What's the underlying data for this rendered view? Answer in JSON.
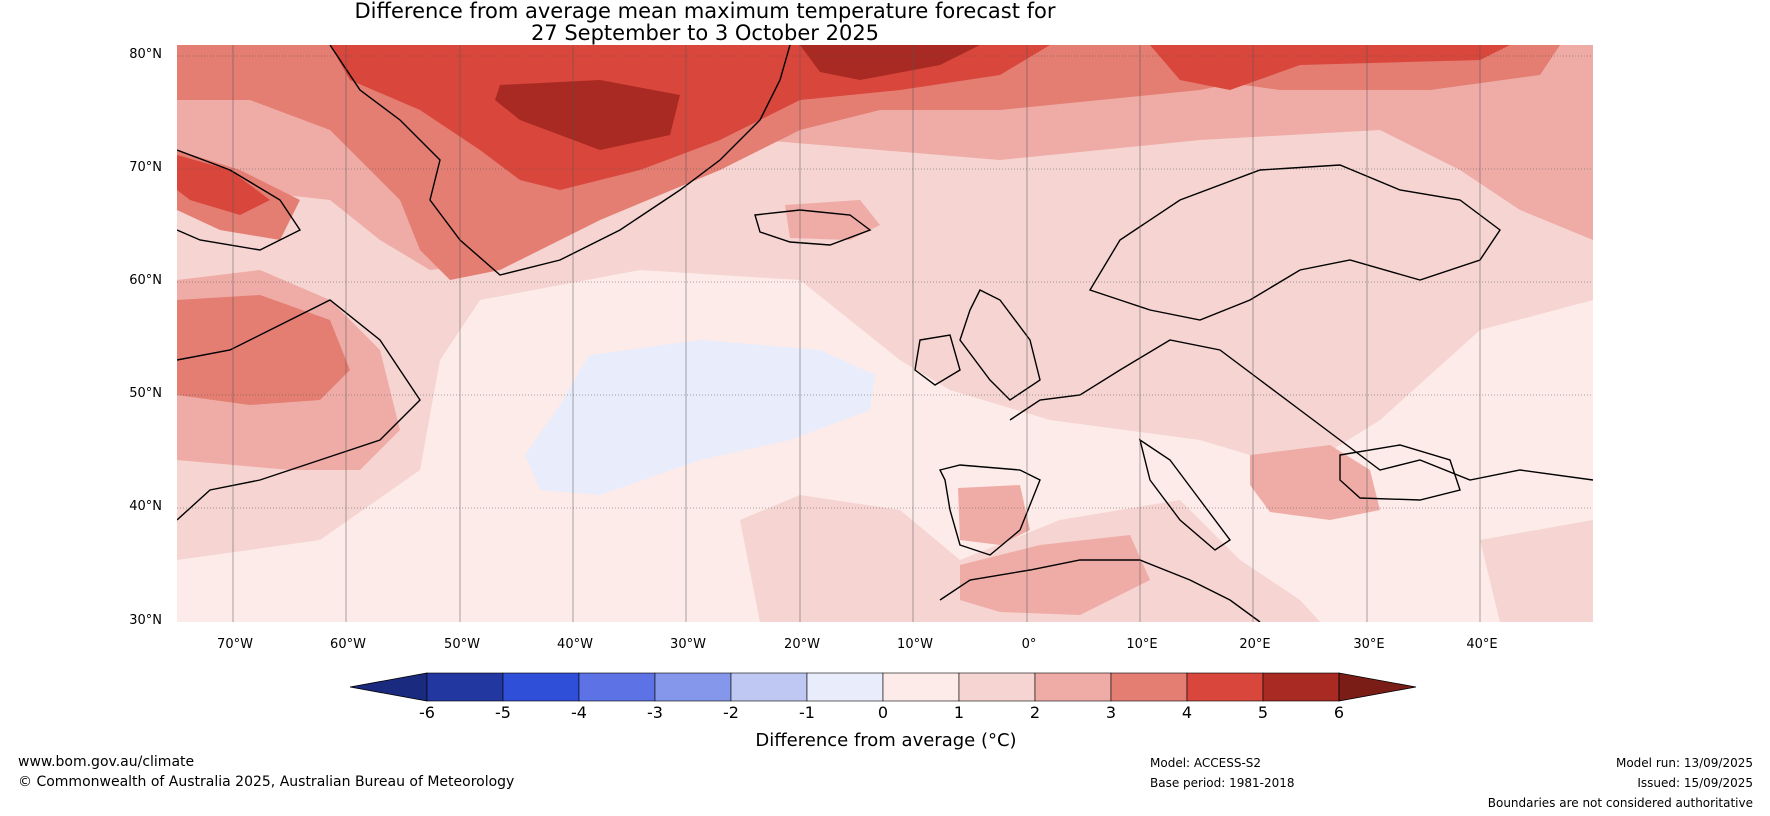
{
  "title": {
    "line1": "Difference from average mean maximum temperature forecast for",
    "line2": "27 September to 3 October 2025"
  },
  "map": {
    "projection": "equirectangular",
    "lat_labels": [
      "80°N",
      "70°N",
      "60°N",
      "50°N",
      "40°N",
      "30°N"
    ],
    "lon_labels": [
      "70°W",
      "60°W",
      "50°W",
      "40°W",
      "30°W",
      "20°W",
      "10°W",
      "0°",
      "10°E",
      "20°E",
      "30°E",
      "40°E"
    ],
    "ocean_anomaly_base": "#fcebe8",
    "regions": [
      {
        "name": "north-atlantic-cool-patch",
        "anomaly_range": [
          -1,
          0
        ],
        "color": "#e8ecfb"
      },
      {
        "name": "greenland-warm",
        "anomaly_range": [
          4,
          5
        ],
        "color": "#d9463b"
      },
      {
        "name": "greenland-peak",
        "anomaly_range": [
          5,
          6
        ],
        "color": "#a82a22"
      },
      {
        "name": "barents-warm",
        "anomaly_range": [
          4,
          5
        ],
        "color": "#d9463b"
      },
      {
        "name": "labrador-warm",
        "anomaly_range": [
          3,
          4
        ],
        "color": "#e47d72"
      },
      {
        "name": "iberia-warm",
        "anomaly_range": [
          2,
          3
        ],
        "color": "#efaca6"
      },
      {
        "name": "north-africa-warm",
        "anomaly_range": [
          2,
          3
        ],
        "color": "#efaca6"
      },
      {
        "name": "balkans-warm",
        "anomaly_range": [
          2,
          3
        ],
        "color": "#efaca6"
      },
      {
        "name": "iceland-warm",
        "anomaly_range": [
          2,
          3
        ],
        "color": "#efaca6"
      }
    ]
  },
  "colorbar": {
    "ticks": [
      "-6",
      "-5",
      "-4",
      "-3",
      "-2",
      "-1",
      "0",
      "1",
      "2",
      "3",
      "4",
      "5",
      "6"
    ],
    "colors": [
      "#22379f",
      "#2f4fd9",
      "#5c72e5",
      "#8497ea",
      "#bfc8f2",
      "#e8ecfb",
      "#fcebe8",
      "#f5d4d1",
      "#efaca6",
      "#e47d72",
      "#d9463b",
      "#a82a22"
    ],
    "low_extend_color": "#1a2a7e",
    "high_extend_color": "#7b1d17",
    "label": "Difference from average (°C)"
  },
  "footer": {
    "website": "www.bom.gov.au/climate",
    "copyright": "© Commonwealth of Australia 2025, Australian Bureau of Meteorology",
    "model": "Model: ACCESS-S2",
    "base_period": "Base period: 1981-2018",
    "model_run": "Model run: 13/09/2025",
    "issued": "Issued: 15/09/2025",
    "disclaimer": "Boundaries are not considered authoritative"
  }
}
